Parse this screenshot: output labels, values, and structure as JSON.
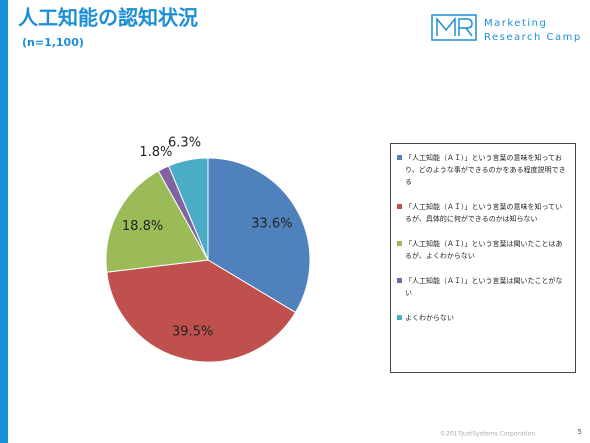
{
  "chart_data": {
    "type": "pie",
    "title": "人工知能の認知状況",
    "subtitle": "(n=1,100)",
    "categories": [
      "「人工知能（ＡＩ）」という言葉の意味を知っており、どのような事ができるのかをある程度説明できる",
      "「人工知能（ＡＩ）」という言葉の意味を知っているが、具体的に何ができるのかは知らない",
      "「人工知能（ＡＩ）」という言葉は聞いたことはあるが、よくわからない",
      "「人工知能（ＡＩ）」という言葉は聞いたことがない",
      "よくわからない"
    ],
    "values": [
      33.6,
      39.5,
      18.8,
      1.8,
      6.3
    ],
    "value_labels": [
      "33.6%",
      "39.5%",
      "18.8%",
      "1.8%",
      "6.3%"
    ],
    "colors": [
      "#4f81bd",
      "#c0504d",
      "#9bbb59",
      "#8064a2",
      "#4bacc6"
    ],
    "legend": "right"
  },
  "logo": {
    "line1": "Marketing",
    "line2": "Research Camp"
  },
  "footer": {
    "copyright": "©2017JustSystems Corporation",
    "page": "5"
  }
}
